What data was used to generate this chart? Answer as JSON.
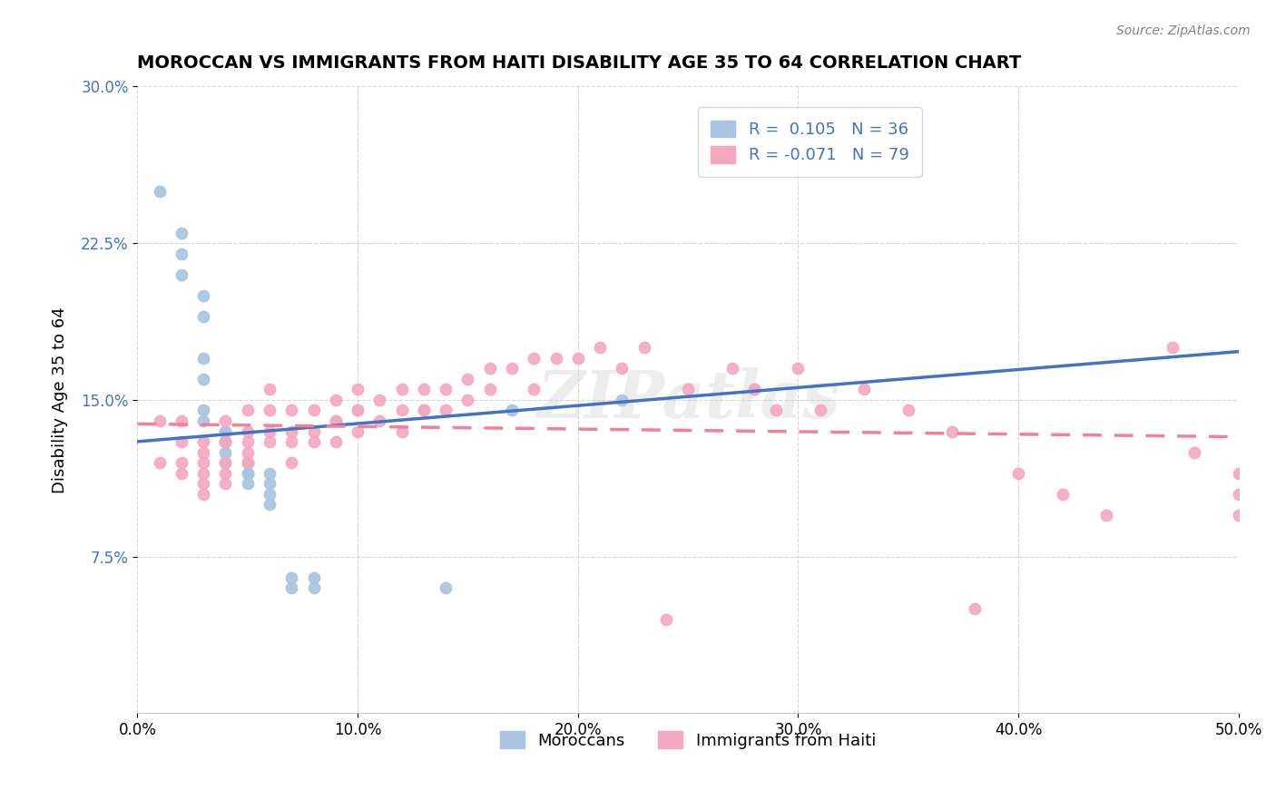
{
  "title": "MOROCCAN VS IMMIGRANTS FROM HAITI DISABILITY AGE 35 TO 64 CORRELATION CHART",
  "source": "Source: ZipAtlas.com",
  "xlabel": "",
  "ylabel": "Disability Age 35 to 64",
  "x_min": 0.0,
  "x_max": 0.5,
  "y_min": 0.0,
  "y_max": 0.3,
  "x_ticks": [
    0.0,
    0.1,
    0.2,
    0.3,
    0.4,
    0.5
  ],
  "x_tick_labels": [
    "0.0%",
    "10.0%",
    "20.0%",
    "30.0%",
    "40.0%",
    "50.0%"
  ],
  "y_ticks": [
    0.075,
    0.15,
    0.225,
    0.3
  ],
  "y_tick_labels": [
    "7.5%",
    "15.0%",
    "22.5%",
    "30.0%"
  ],
  "moroccan_R": 0.105,
  "moroccan_N": 36,
  "haiti_R": -0.071,
  "haiti_N": 79,
  "moroccan_color": "#a8c4e0",
  "haiti_color": "#f4a8c0",
  "moroccan_line_color": "#4472c4",
  "haiti_line_color": "#f48098",
  "legend_label_1": "Moroccans",
  "legend_label_2": "Immigrants from Haiti",
  "moroccan_x": [
    0.01,
    0.02,
    0.02,
    0.02,
    0.03,
    0.03,
    0.03,
    0.03,
    0.03,
    0.03,
    0.04,
    0.04,
    0.04,
    0.04,
    0.04,
    0.04,
    0.05,
    0.05,
    0.05,
    0.05,
    0.05,
    0.06,
    0.06,
    0.06,
    0.06,
    0.07,
    0.07,
    0.08,
    0.08,
    0.09,
    0.1,
    0.13,
    0.14,
    0.17,
    0.22,
    0.28
  ],
  "moroccan_y": [
    0.25,
    0.23,
    0.22,
    0.21,
    0.2,
    0.19,
    0.17,
    0.16,
    0.145,
    0.14,
    0.135,
    0.135,
    0.13,
    0.13,
    0.125,
    0.12,
    0.12,
    0.12,
    0.115,
    0.115,
    0.11,
    0.115,
    0.11,
    0.105,
    0.1,
    0.06,
    0.065,
    0.06,
    0.065,
    0.14,
    0.145,
    0.145,
    0.06,
    0.145,
    0.15,
    0.155
  ],
  "haiti_x": [
    0.01,
    0.01,
    0.02,
    0.02,
    0.02,
    0.02,
    0.03,
    0.03,
    0.03,
    0.03,
    0.03,
    0.03,
    0.04,
    0.04,
    0.04,
    0.04,
    0.04,
    0.05,
    0.05,
    0.05,
    0.05,
    0.05,
    0.06,
    0.06,
    0.06,
    0.06,
    0.07,
    0.07,
    0.07,
    0.07,
    0.08,
    0.08,
    0.08,
    0.09,
    0.09,
    0.09,
    0.1,
    0.1,
    0.1,
    0.11,
    0.11,
    0.12,
    0.12,
    0.12,
    0.13,
    0.13,
    0.14,
    0.14,
    0.15,
    0.15,
    0.16,
    0.16,
    0.17,
    0.18,
    0.18,
    0.19,
    0.2,
    0.21,
    0.22,
    0.23,
    0.24,
    0.25,
    0.27,
    0.28,
    0.29,
    0.3,
    0.31,
    0.33,
    0.35,
    0.37,
    0.38,
    0.4,
    0.42,
    0.44,
    0.47,
    0.48,
    0.5,
    0.5,
    0.5
  ],
  "haiti_y": [
    0.14,
    0.12,
    0.14,
    0.13,
    0.12,
    0.115,
    0.13,
    0.125,
    0.12,
    0.115,
    0.11,
    0.105,
    0.14,
    0.13,
    0.12,
    0.115,
    0.11,
    0.145,
    0.135,
    0.13,
    0.125,
    0.12,
    0.155,
    0.145,
    0.135,
    0.13,
    0.145,
    0.135,
    0.13,
    0.12,
    0.145,
    0.135,
    0.13,
    0.15,
    0.14,
    0.13,
    0.155,
    0.145,
    0.135,
    0.15,
    0.14,
    0.155,
    0.145,
    0.135,
    0.155,
    0.145,
    0.155,
    0.145,
    0.16,
    0.15,
    0.165,
    0.155,
    0.165,
    0.17,
    0.155,
    0.17,
    0.17,
    0.175,
    0.165,
    0.175,
    0.045,
    0.155,
    0.165,
    0.155,
    0.145,
    0.165,
    0.145,
    0.155,
    0.145,
    0.135,
    0.05,
    0.115,
    0.105,
    0.095,
    0.175,
    0.125,
    0.115,
    0.105,
    0.095
  ],
  "watermark": "ZIPatlas",
  "background_color": "#ffffff",
  "grid_color": "#cccccc"
}
